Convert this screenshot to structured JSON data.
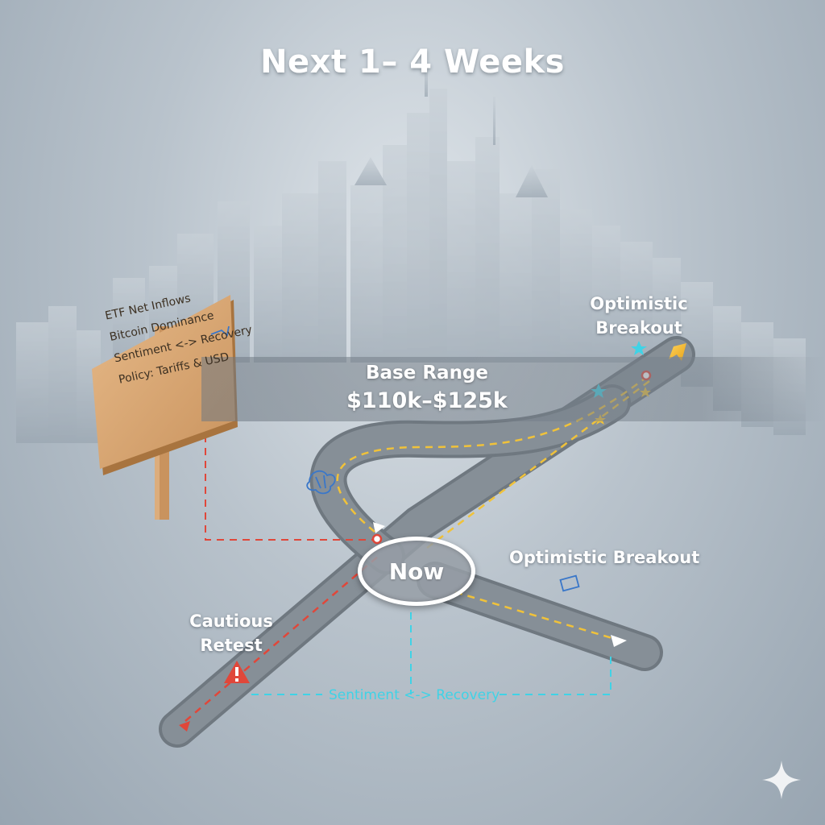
{
  "title": "Next 1– 4 Weeks",
  "base_range": {
    "label": "Base Range",
    "value": "$110k–$125k"
  },
  "center_node": "Now",
  "paths": {
    "optimistic_top": [
      "Optimistic",
      "Breakout"
    ],
    "optimistic_right": "Optimistic Breakout",
    "cautious": [
      "Cautious",
      "Retest"
    ]
  },
  "sentiment_link": "Sentiment <-> Recovery",
  "signpost": {
    "lines": [
      "ETF Net Inflows",
      "Bitcoin Dominance",
      "Sentiment <-> Recovery",
      "Policy: Tariffs & USD"
    ]
  },
  "colors": {
    "bullish_dash": "#f0c23a",
    "bearish_dash": "#e0473a",
    "sentiment_dash": "#3fd3e6",
    "road": "#7c858d"
  },
  "icons": [
    "warning-icon",
    "star-icon",
    "arrow-icon",
    "brain-icon",
    "sparkle-icon",
    "chart-icon",
    "dollar-icon",
    "shield-icon",
    "money-icon"
  ]
}
